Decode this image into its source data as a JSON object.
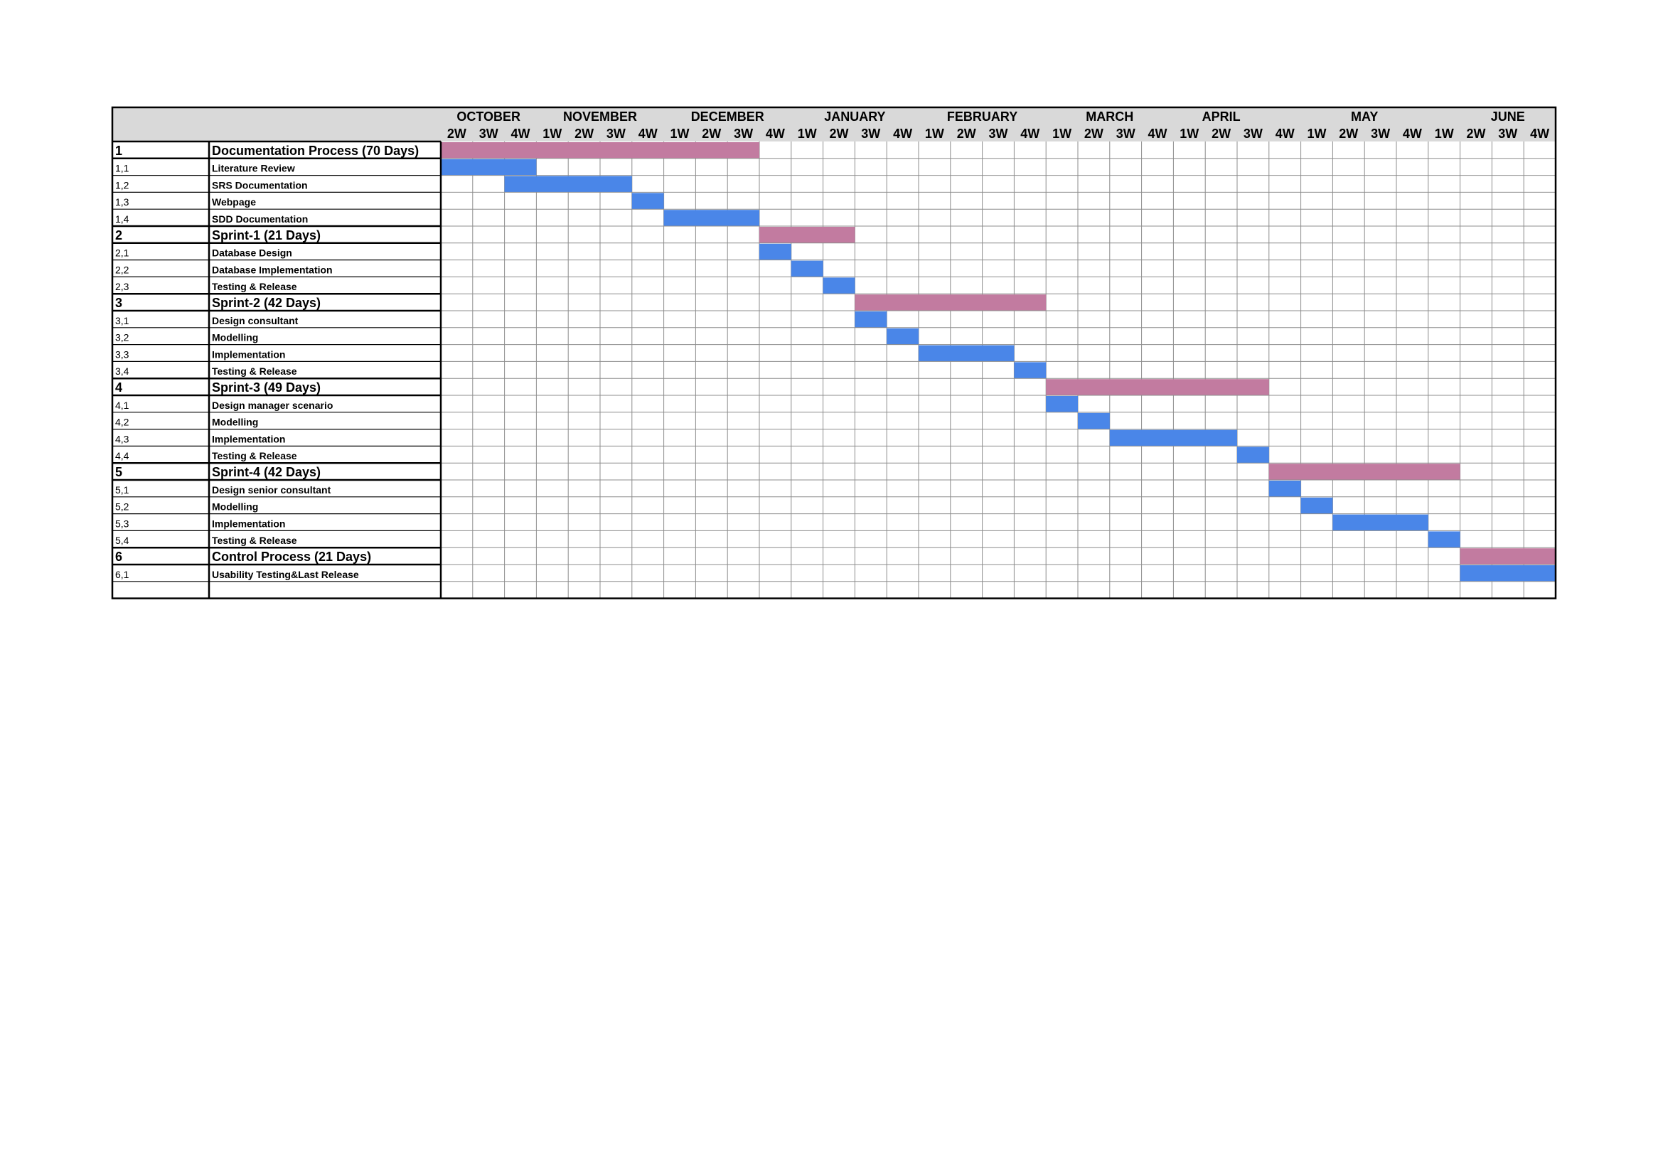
{
  "colors": {
    "header_bg": "#d9d9d9",
    "phase_bar": "#c27ba0",
    "task_bar": "#4a86e8",
    "grid_line": "#8c8c8c",
    "border": "#000000"
  },
  "chart_data": {
    "type": "gantt",
    "months": [
      {
        "label": "OCTOBER",
        "span": 3
      },
      {
        "label": "NOVEMBER",
        "span": 4
      },
      {
        "label": "DECEMBER",
        "span": 4
      },
      {
        "label": "JANUARY",
        "span": 4
      },
      {
        "label": "FEBRUARY",
        "span": 4
      },
      {
        "label": "MARCH",
        "span": 4
      },
      {
        "label": "APRIL",
        "span": 3
      },
      {
        "label": "MAY",
        "span": 6
      },
      {
        "label": "JUNE",
        "span": 3
      }
    ],
    "weeks": [
      "2W",
      "3W",
      "4W",
      "1W",
      "2W",
      "3W",
      "4W",
      "1W",
      "2W",
      "3W",
      "4W",
      "1W",
      "2W",
      "3W",
      "4W",
      "1W",
      "2W",
      "3W",
      "4W",
      "1W",
      "2W",
      "3W",
      "4W",
      "1W",
      "2W",
      "3W",
      "4W",
      "1W",
      "2W",
      "3W",
      "4W",
      "1W",
      "2W",
      "3W",
      "4W"
    ],
    "rows": [
      {
        "id": "1",
        "name": "Documentation Process (70 Days)",
        "level": "phase",
        "start": 0,
        "end": 10
      },
      {
        "id": "1,1",
        "name": "Literature Review",
        "level": "task",
        "start": 0,
        "end": 3
      },
      {
        "id": "1,2",
        "name": "SRS Documentation",
        "level": "task",
        "start": 2,
        "end": 6
      },
      {
        "id": "1,3",
        "name": "Webpage",
        "level": "task",
        "start": 6,
        "end": 7
      },
      {
        "id": "1,4",
        "name": "SDD Documentation",
        "level": "task",
        "start": 7,
        "end": 10
      },
      {
        "id": "2",
        "name": "Sprint-1 (21 Days)",
        "level": "phase",
        "start": 10,
        "end": 13
      },
      {
        "id": "2,1",
        "name": "Database Design",
        "level": "task",
        "start": 10,
        "end": 11
      },
      {
        "id": "2,2",
        "name": "Database Implementation",
        "level": "task",
        "start": 11,
        "end": 12
      },
      {
        "id": "2,3",
        "name": "Testing & Release",
        "level": "task",
        "start": 12,
        "end": 13
      },
      {
        "id": "3",
        "name": "Sprint-2 (42 Days)",
        "level": "phase",
        "start": 13,
        "end": 19
      },
      {
        "id": "3,1",
        "name": "Design consultant",
        "level": "task",
        "start": 13,
        "end": 14
      },
      {
        "id": "3,2",
        "name": "Modelling",
        "level": "task",
        "start": 14,
        "end": 15
      },
      {
        "id": "3,3",
        "name": "Implementation",
        "level": "task",
        "start": 15,
        "end": 18
      },
      {
        "id": "3,4",
        "name": "Testing & Release",
        "level": "task",
        "start": 18,
        "end": 19
      },
      {
        "id": "4",
        "name": "Sprint-3 (49 Days)",
        "level": "phase",
        "start": 19,
        "end": 26
      },
      {
        "id": "4,1",
        "name": "Design manager scenario",
        "level": "task",
        "start": 19,
        "end": 20
      },
      {
        "id": "4,2",
        "name": "Modelling",
        "level": "task",
        "start": 20,
        "end": 21
      },
      {
        "id": "4,3",
        "name": "Implementation",
        "level": "task",
        "start": 21,
        "end": 25
      },
      {
        "id": "4,4",
        "name": "Testing & Release",
        "level": "task",
        "start": 25,
        "end": 26
      },
      {
        "id": "5",
        "name": "Sprint-4 (42 Days)",
        "level": "phase",
        "start": 26,
        "end": 32
      },
      {
        "id": "5,1",
        "name": "Design senior consultant",
        "level": "task",
        "start": 26,
        "end": 27
      },
      {
        "id": "5,2",
        "name": "Modelling",
        "level": "task",
        "start": 27,
        "end": 28
      },
      {
        "id": "5,3",
        "name": "Implementation",
        "level": "task",
        "start": 28,
        "end": 31
      },
      {
        "id": "5,4",
        "name": "Testing & Release",
        "level": "task",
        "start": 31,
        "end": 32
      },
      {
        "id": "6",
        "name": "Control Process (21 Days)",
        "level": "phase",
        "start": 32,
        "end": 35
      },
      {
        "id": "6,1",
        "name": "Usability Testing&Last Release",
        "level": "task",
        "start": 32,
        "end": 35
      },
      {
        "id": "",
        "name": "",
        "level": "empty",
        "start": null,
        "end": null
      }
    ]
  }
}
